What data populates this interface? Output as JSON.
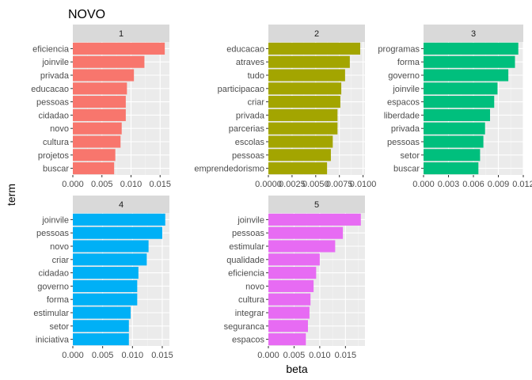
{
  "chart_data": {
    "type": "bar",
    "title": "NOVO",
    "xlabel": "beta",
    "ylabel": "term",
    "orientation": "horizontal",
    "facet_colors": [
      "#F8766D",
      "#A3A500",
      "#00BF7D",
      "#00B0F6",
      "#E76BF3"
    ],
    "panels": [
      {
        "label": "1",
        "color": "#F8766D",
        "categories": [
          "eficiencia",
          "joinvile",
          "privada",
          "educacao",
          "pessoas",
          "cidadao",
          "novo",
          "cultura",
          "projetos",
          "buscar"
        ],
        "values": [
          0.0158,
          0.0123,
          0.0105,
          0.0093,
          0.0091,
          0.0091,
          0.0084,
          0.0082,
          0.0073,
          0.0071
        ],
        "xlim": [
          0,
          0.0166
        ],
        "ticks": [
          0,
          0.005,
          0.01,
          0.015
        ],
        "tick_labels": [
          "0.000",
          "0.005",
          "0.010",
          "0.015"
        ]
      },
      {
        "label": "2",
        "color": "#A3A500",
        "categories": [
          "educacao",
          "atraves",
          "tudo",
          "participacao",
          "criar",
          "privada",
          "parcerias",
          "escolas",
          "pessoas",
          "emprendedorismo"
        ],
        "values": [
          0.0097,
          0.0086,
          0.0081,
          0.0077,
          0.0076,
          0.0073,
          0.0073,
          0.0068,
          0.0066,
          0.0062
        ],
        "xlim": [
          0,
          0.0102
        ],
        "ticks": [
          0,
          0.0025,
          0.005,
          0.0075,
          0.01
        ],
        "tick_labels": [
          "0.0000",
          "0.0025",
          "0.0050",
          "0.0075",
          "0.0100"
        ]
      },
      {
        "label": "3",
        "color": "#00BF7D",
        "categories": [
          "programas",
          "forma",
          "governo",
          "joinvile",
          "espacos",
          "liberdade",
          "privada",
          "pessoas",
          "setor",
          "buscar"
        ],
        "values": [
          0.0114,
          0.011,
          0.0102,
          0.0089,
          0.0085,
          0.008,
          0.0074,
          0.0072,
          0.0068,
          0.0066
        ],
        "xlim": [
          0,
          0.012
        ],
        "ticks": [
          0,
          0.003,
          0.006,
          0.009,
          0.012
        ],
        "tick_labels": [
          "0.000",
          "0.003",
          "0.006",
          "0.009",
          "0.012"
        ]
      },
      {
        "label": "4",
        "color": "#00B0F6",
        "categories": [
          "joinvile",
          "pessoas",
          "novo",
          "criar",
          "cidadao",
          "governo",
          "forma",
          "estimular",
          "setor",
          "iniciativa"
        ],
        "values": [
          0.0155,
          0.015,
          0.0127,
          0.0124,
          0.011,
          0.0108,
          0.0108,
          0.0097,
          0.0094,
          0.0094
        ],
        "xlim": [
          0,
          0.0162
        ],
        "ticks": [
          0,
          0.005,
          0.01,
          0.015
        ],
        "tick_labels": [
          "0.000",
          "0.005",
          "0.010",
          "0.015"
        ]
      },
      {
        "label": "5",
        "color": "#E76BF3",
        "categories": [
          "joinvile",
          "pessoas",
          "estimular",
          "qualidade",
          "eficiencia",
          "novo",
          "cultura",
          "integrar",
          "seguranca",
          "espacos"
        ],
        "values": [
          0.018,
          0.0145,
          0.013,
          0.01,
          0.0093,
          0.0088,
          0.0082,
          0.008,
          0.0077,
          0.0073
        ],
        "xlim": [
          0,
          0.0188
        ],
        "ticks": [
          0,
          0.005,
          0.01,
          0.015
        ],
        "tick_labels": [
          "0.000",
          "0.005",
          "0.010",
          "0.015"
        ]
      }
    ],
    "grid": true,
    "legend": "none"
  }
}
